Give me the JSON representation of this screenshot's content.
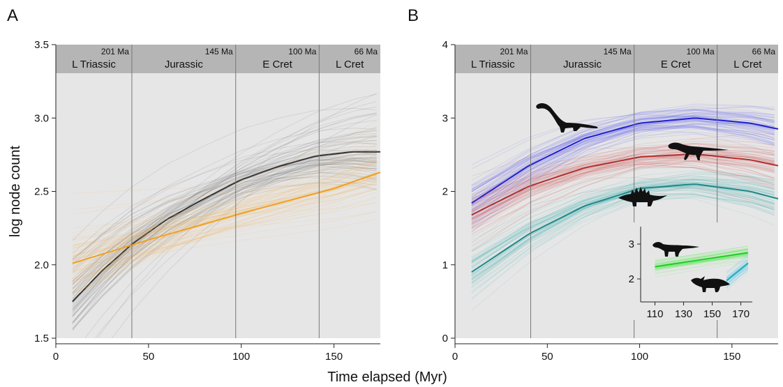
{
  "figure": {
    "shared_xlabel": "Time elapsed (Myr)"
  },
  "chart_data": [
    {
      "panel": "A",
      "type": "line",
      "xlabel": "",
      "ylabel": "log node count",
      "xlim": [
        0,
        175
      ],
      "ylim": [
        1.5,
        3.5
      ],
      "xticks": [
        0,
        50,
        100,
        150
      ],
      "yticks": [
        1.5,
        2.0,
        2.5,
        3.0,
        3.5
      ],
      "ytick_labels": [
        "1.5",
        "2.0",
        "2.5",
        "3.0",
        "3.5"
      ],
      "periods": [
        {
          "name": "L Triassic",
          "age": "201 Ma",
          "start": 0,
          "end": 41
        },
        {
          "name": "Jurassic",
          "age": "145 Ma",
          "start": 41,
          "end": 97
        },
        {
          "name": "E Cret",
          "age": "100 Ma",
          "start": 97,
          "end": 142
        },
        {
          "name": "L Cret",
          "age": "66 Ma",
          "start": 142,
          "end": 175
        }
      ],
      "period_boundaries": [
        41,
        97,
        142
      ],
      "grid": false,
      "series": [
        {
          "color": "#333333",
          "band_color": "#555555",
          "x": [
            9,
            25,
            41,
            60,
            80,
            100,
            120,
            140,
            160,
            175
          ],
          "y": [
            1.75,
            1.96,
            2.14,
            2.31,
            2.45,
            2.58,
            2.67,
            2.74,
            2.77,
            2.77
          ]
        },
        {
          "color": "#f0a020",
          "band_color": "#f5b54a",
          "x": [
            9,
            50,
            100,
            150,
            175
          ],
          "y": [
            2.01,
            2.17,
            2.35,
            2.52,
            2.63
          ]
        }
      ]
    },
    {
      "panel": "B",
      "type": "line",
      "xlabel": "",
      "ylabel": "",
      "xlim": [
        0,
        175
      ],
      "ylim": [
        0,
        4
      ],
      "xticks": [
        0,
        50,
        100,
        150
      ],
      "yticks": [
        0,
        1,
        2,
        3,
        4
      ],
      "ytick_labels": [
        "0",
        "1",
        "2",
        "3",
        "4"
      ],
      "periods": [
        {
          "name": "L Triassic",
          "age": "201 Ma",
          "start": 0,
          "end": 41
        },
        {
          "name": "Jurassic",
          "age": "145 Ma",
          "start": 41,
          "end": 97
        },
        {
          "name": "E Cret",
          "age": "100 Ma",
          "start": 97,
          "end": 142
        },
        {
          "name": "L Cret",
          "age": "66 Ma",
          "start": 142,
          "end": 175
        }
      ],
      "period_boundaries": [
        41,
        97,
        142
      ],
      "grid": false,
      "series": [
        {
          "color": "#2020d0",
          "band_color": "#4b4bf0",
          "icon": "sauropod-silhouette-icon",
          "x": [
            9,
            40,
            70,
            100,
            130,
            160,
            175
          ],
          "y": [
            1.84,
            2.35,
            2.72,
            2.93,
            3.0,
            2.93,
            2.85
          ]
        },
        {
          "color": "#b03030",
          "band_color": "#d05050",
          "icon": "theropod-silhouette-icon",
          "x": [
            9,
            40,
            70,
            100,
            130,
            160,
            175
          ],
          "y": [
            1.68,
            2.07,
            2.32,
            2.47,
            2.51,
            2.43,
            2.35
          ]
        },
        {
          "color": "#208888",
          "band_color": "#40b0b0",
          "icon": "stegosaur-silhouette-icon",
          "x": [
            9,
            40,
            70,
            100,
            130,
            160,
            175
          ],
          "y": [
            0.9,
            1.42,
            1.8,
            2.04,
            2.1,
            2.0,
            1.9
          ]
        }
      ],
      "inset": {
        "type": "line",
        "xlim": [
          100,
          178
        ],
        "ylim": [
          1.5,
          3.5
        ],
        "xticks": [
          110,
          130,
          150,
          170
        ],
        "yticks": [
          2,
          3
        ],
        "series": [
          {
            "color": "#22cc22",
            "band_color": "#55ee55",
            "icon": "hadrosaur-silhouette-icon",
            "x": [
              110,
              175
            ],
            "y": [
              2.35,
              2.75
            ]
          },
          {
            "color": "#22a8c8",
            "band_color": "#66ccdd",
            "icon": "ceratopsian-silhouette-icon",
            "x": [
              160,
              175
            ],
            "y": [
              1.95,
              2.45
            ]
          }
        ]
      }
    }
  ]
}
